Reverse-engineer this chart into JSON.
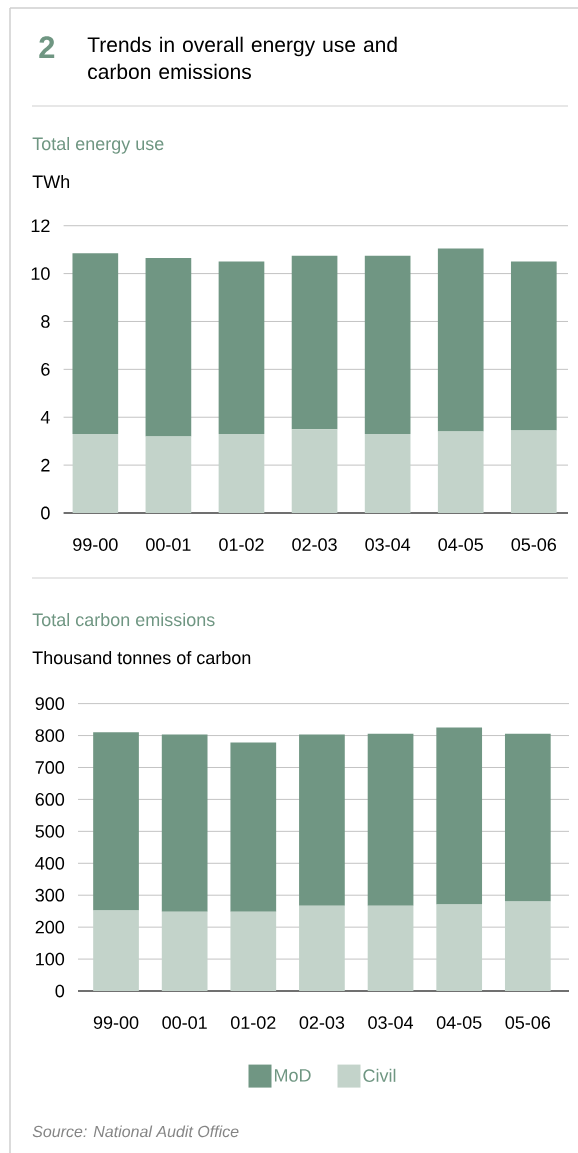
{
  "chart_data": [
    {
      "type": "bar",
      "title": "Trends in overall energy use and carbon emissions",
      "subtitle": "Total energy use",
      "ylabel": "TWh",
      "annotations": [
        "2"
      ],
      "categories": [
        "99-00",
        "00-01",
        "01-02",
        "02-03",
        "03-04",
        "04-05",
        "05-06"
      ],
      "stacked": true,
      "series": [
        {
          "color": "#c3d3ca",
          "values": [
            3.3,
            3.2,
            3.3,
            3.5,
            3.3,
            3.4,
            3.45
          ]
        },
        {
          "color": "#709683",
          "values": [
            7.55,
            7.45,
            7.2,
            7.25,
            7.45,
            7.65,
            7.05
          ]
        }
      ],
      "ylim": [
        0,
        12
      ],
      "yticks": [
        0,
        2,
        4,
        6,
        8,
        10,
        12
      ],
      "grid": "y"
    },
    {
      "type": "bar",
      "title": "Total carbon emissions",
      "ylabel": "Thousand tonnes of carbon",
      "annotations": [
        "Source: National Audit Office"
      ],
      "categories": [
        "99-00",
        "00-01",
        "01-02",
        "02-03",
        "03-04",
        "04-05",
        "05-06"
      ],
      "stacked": true,
      "series": [
        {
          "name": "Civil",
          "color": "#c3d3ca",
          "values": [
            252,
            248,
            248,
            267,
            267,
            271,
            280
          ]
        },
        {
          "name": "MoD",
          "color": "#709683",
          "values": [
            558,
            555,
            530,
            536,
            539,
            554,
            526
          ]
        }
      ],
      "ylim": [
        0,
        900
      ],
      "yticks": [
        0,
        100,
        200,
        300,
        400,
        500,
        600,
        700,
        800,
        900
      ],
      "grid": "y",
      "legend": "bottom"
    }
  ]
}
